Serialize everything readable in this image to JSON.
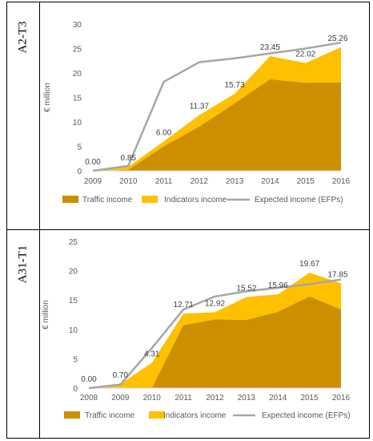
{
  "panels": [
    {
      "label": "A2-T3"
    },
    {
      "label": "A31-T1"
    }
  ],
  "colors": {
    "traffic": "#cc8f00",
    "indicators": "#ffc000",
    "expected": "#a6a6a6",
    "axis": "#d9d9d9",
    "text": "#595959"
  },
  "chart_data": [
    {
      "type": "area",
      "ylabel": "€ million",
      "ylim": [
        0,
        30
      ],
      "yticks": [
        0,
        5,
        10,
        15,
        20,
        25,
        30
      ],
      "categories": [
        "2009",
        "2010",
        "2011",
        "2012",
        "2013",
        "2014",
        "2015",
        "2016"
      ],
      "grid": false,
      "legend": "bottom",
      "series": [
        {
          "name": "Traffic income",
          "kind": "area",
          "values": [
            0.0,
            0.2,
            5.0,
            9.0,
            13.8,
            18.7,
            18.0,
            18.1
          ]
        },
        {
          "name": "Indicators income",
          "kind": "area",
          "values": [
            0.0,
            0.65,
            1.0,
            2.37,
            1.93,
            4.75,
            4.02,
            7.16
          ]
        },
        {
          "name": "Expected income (EFPs)",
          "kind": "line",
          "values": [
            0.0,
            1.0,
            18.2,
            22.2,
            23.0,
            24.0,
            25.0,
            26.2
          ]
        }
      ],
      "data_labels": [
        "0.00",
        "0.85",
        "6.00",
        "11.37",
        "15.73",
        "23.45",
        "22.02",
        "25.26"
      ],
      "data_label_values": [
        0.0,
        0.85,
        6.0,
        11.37,
        15.73,
        23.45,
        22.02,
        25.26
      ]
    },
    {
      "type": "area",
      "ylabel": "€ million",
      "ylim": [
        0,
        25
      ],
      "yticks": [
        0,
        5,
        10,
        15,
        20,
        25
      ],
      "categories": [
        "2008",
        "2009",
        "2010",
        "2011",
        "2012",
        "2013",
        "2014",
        "2015",
        "2016"
      ],
      "grid": false,
      "legend": "bottom",
      "series": [
        {
          "name": "Traffic income",
          "kind": "area",
          "values": [
            0.0,
            0.0,
            0.0,
            10.7,
            11.7,
            11.6,
            13.0,
            15.6,
            13.4
          ]
        },
        {
          "name": "Indicators income",
          "kind": "area",
          "values": [
            0.0,
            0.7,
            4.31,
            2.01,
            1.22,
            3.92,
            2.96,
            4.07,
            4.45
          ]
        },
        {
          "name": "Expected income (EFPs)",
          "kind": "line",
          "values": [
            0.0,
            0.6,
            6.8,
            13.4,
            15.6,
            16.5,
            17.1,
            17.7,
            18.5
          ]
        }
      ],
      "data_labels": [
        "0.00",
        "0.70",
        "4.31",
        "12.71",
        "12.92",
        "15.52",
        "15.96",
        "19.67",
        "17.85"
      ],
      "data_label_values": [
        0.0,
        0.7,
        4.31,
        12.71,
        12.92,
        15.52,
        15.96,
        19.67,
        17.85
      ]
    }
  ]
}
